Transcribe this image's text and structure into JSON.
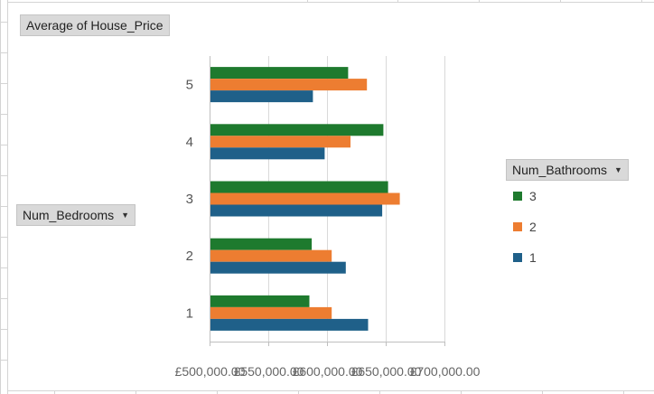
{
  "value_field": {
    "label": "Average of House_Price"
  },
  "row_field": {
    "label": "Num_Bedrooms"
  },
  "legend": {
    "field_label": "Num_Bathrooms",
    "items": [
      {
        "label": "3",
        "color": "#1e7a2e"
      },
      {
        "label": "2",
        "color": "#ed7d31"
      },
      {
        "label": "1",
        "color": "#1f6089"
      }
    ]
  },
  "chart_data": {
    "type": "bar",
    "orientation": "horizontal",
    "categories": [
      "1",
      "2",
      "3",
      "4",
      "5"
    ],
    "series": [
      {
        "name": "1",
        "color": "#1f6089",
        "values": [
          635000,
          616000,
          647000,
          598000,
          588000
        ]
      },
      {
        "name": "2",
        "color": "#ed7d31",
        "values": [
          604000,
          604000,
          662000,
          620000,
          634000
        ]
      },
      {
        "name": "3",
        "color": "#1e7a2e",
        "values": [
          585000,
          587000,
          652000,
          648000,
          618000
        ]
      }
    ],
    "xlim": [
      500000,
      700000
    ],
    "x_tick_labels": [
      "£500,000.00",
      "£550,000.00",
      "£600,000.00",
      "£650,000.00",
      "£700,000.00"
    ],
    "title": "",
    "xlabel": "",
    "ylabel": "Num_Bedrooms",
    "legend_position": "right",
    "grid": true
  }
}
